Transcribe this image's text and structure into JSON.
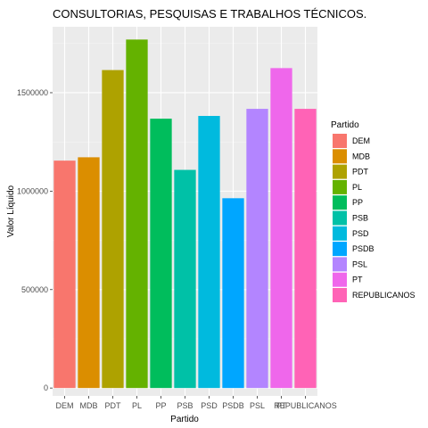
{
  "chart_data": {
    "type": "bar",
    "title": "CONSULTORIAS, PESQUISAS E TRABALHOS TÉCNICOS.",
    "xlabel": "Partido",
    "ylabel": "Valor Líquido",
    "categories": [
      "DEM",
      "MDB",
      "PDT",
      "PL",
      "PP",
      "PSB",
      "PSD",
      "PSDB",
      "PSL",
      "PT",
      "REPUBLICANOS"
    ],
    "values": [
      1155000,
      1172000,
      1615000,
      1770000,
      1368000,
      1108000,
      1382000,
      964000,
      1418000,
      1625000,
      1418000
    ],
    "colors": [
      "#F8766D",
      "#DB8E00",
      "#AEA200",
      "#64B200",
      "#00BD5C",
      "#00C1A7",
      "#00BADE",
      "#00A6FF",
      "#B385FF",
      "#EF67EB",
      "#FF63B6"
    ],
    "ylim": [
      -40000,
      1835000
    ],
    "yticks": [
      0,
      500000,
      1000000,
      1500000
    ],
    "ytick_labels": [
      "0",
      "500000",
      "1000000",
      "1500000"
    ],
    "grid": true,
    "legend": {
      "title": "Partido",
      "placement": "right",
      "entries": [
        "DEM",
        "MDB",
        "PDT",
        "PL",
        "PP",
        "PSB",
        "PSD",
        "PSDB",
        "PSL",
        "PT",
        "REPUBLICANOS"
      ]
    }
  }
}
